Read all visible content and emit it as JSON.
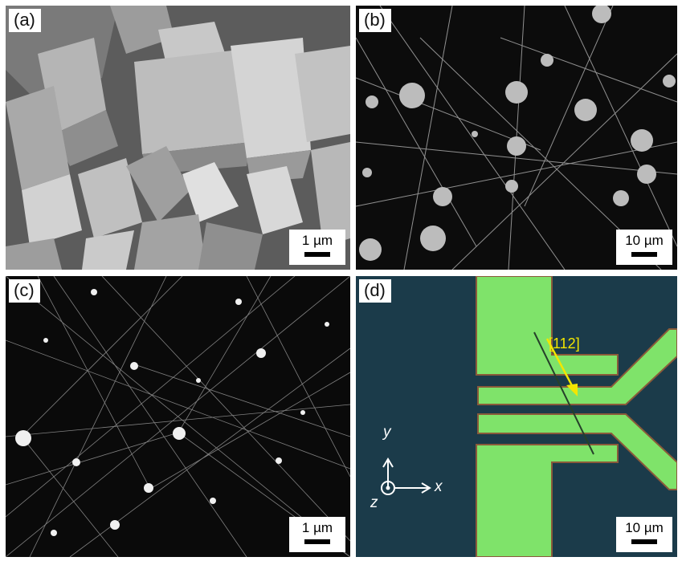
{
  "panels": [
    {
      "label": "(a)",
      "scale": "1 µm",
      "kind": "sem-crystals"
    },
    {
      "label": "(b)",
      "scale": "10 µm",
      "kind": "sem-nanowires-particles"
    },
    {
      "label": "(c)",
      "scale": "1 µm",
      "kind": "sem-dense-nanowires"
    },
    {
      "label": "(d)",
      "scale": "10 µm",
      "kind": "optical-device"
    }
  ],
  "device": {
    "direction_label": "[112]",
    "axes": {
      "x": "x",
      "y": "y",
      "z": "z"
    }
  },
  "colors": {
    "electrode": "#7fe36a",
    "substrate": "#1b3b4a",
    "arrow": "#f2e600",
    "sem_background": "#0c0c0c"
  }
}
